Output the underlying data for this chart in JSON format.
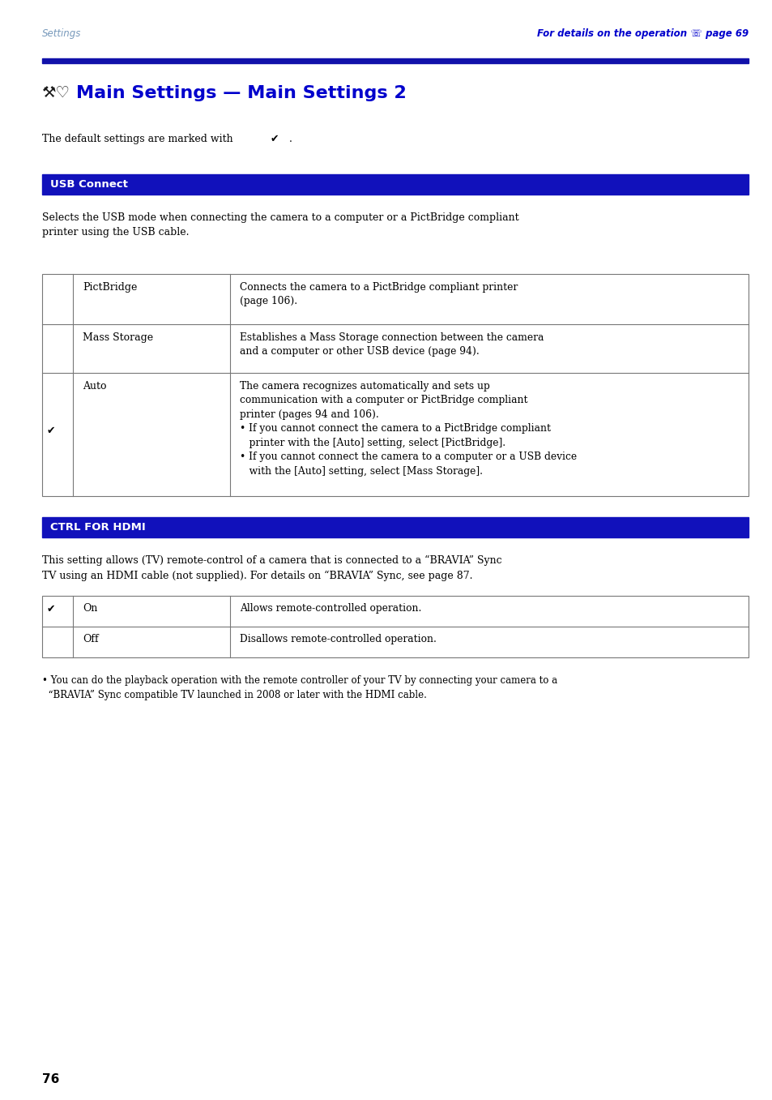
{
  "page_bg": "#ffffff",
  "header_left": "Settings",
  "header_left_color": "#7799bb",
  "header_right": "For details on the operation ☏ page 69",
  "header_right_color": "#0000cc",
  "title_line_color": "#1111aa",
  "title_text": "Main Settings — Main Settings 2",
  "title_color": "#0000cc",
  "section1_bg": "#1111bb",
  "section1_text": "USB Connect",
  "section1_text_color": "#ffffff",
  "section2_bg": "#1111bb",
  "section2_text": "CTRL FOR HDMI",
  "section2_text_color": "#ffffff",
  "page_number": "76",
  "check_symbol": "✔",
  "usb_row1_label": "PictBridge",
  "usb_row1_desc": "Connects the camera to a PictBridge compliant printer\n(page 106).",
  "usb_row2_label": "Mass Storage",
  "usb_row2_desc": "Establishes a Mass Storage connection between the camera\nand a computer or other USB device (page 94).",
  "usb_row3_label": "Auto",
  "usb_row3_desc": "The camera recognizes automatically and sets up\ncommunication with a computer or PictBridge compliant\nprinter (pages 94 and 106).\n• If you cannot connect the camera to a PictBridge compliant\n   printer with the [Auto] setting, select [PictBridge].\n• If you cannot connect the camera to a computer or a USB device\n   with the [Auto] setting, select [Mass Storage].",
  "hdmi_row1_label": "On",
  "hdmi_row1_desc": "Allows remote-controlled operation.",
  "hdmi_row2_label": "Off",
  "hdmi_row2_desc": "Disallows remote-controlled operation.",
  "note_text": "• You can do the playback operation with the remote controller of your TV by connecting your camera to a\n  “BRAVIA” Sync compatible TV launched in 2008 or later with the HDMI cable.",
  "default_line": "The default settings are marked with",
  "usb_intro": "Selects the USB mode when connecting the camera to a computer or a PictBridge compliant\nprinter using the USB cable.",
  "hdmi_intro": "This setting allows (TV) remote-control of a camera that is connected to a “BRAVIA” Sync\nTV using an HDMI cable (not supplied). For details on “BRAVIA” Sync, see page 87."
}
